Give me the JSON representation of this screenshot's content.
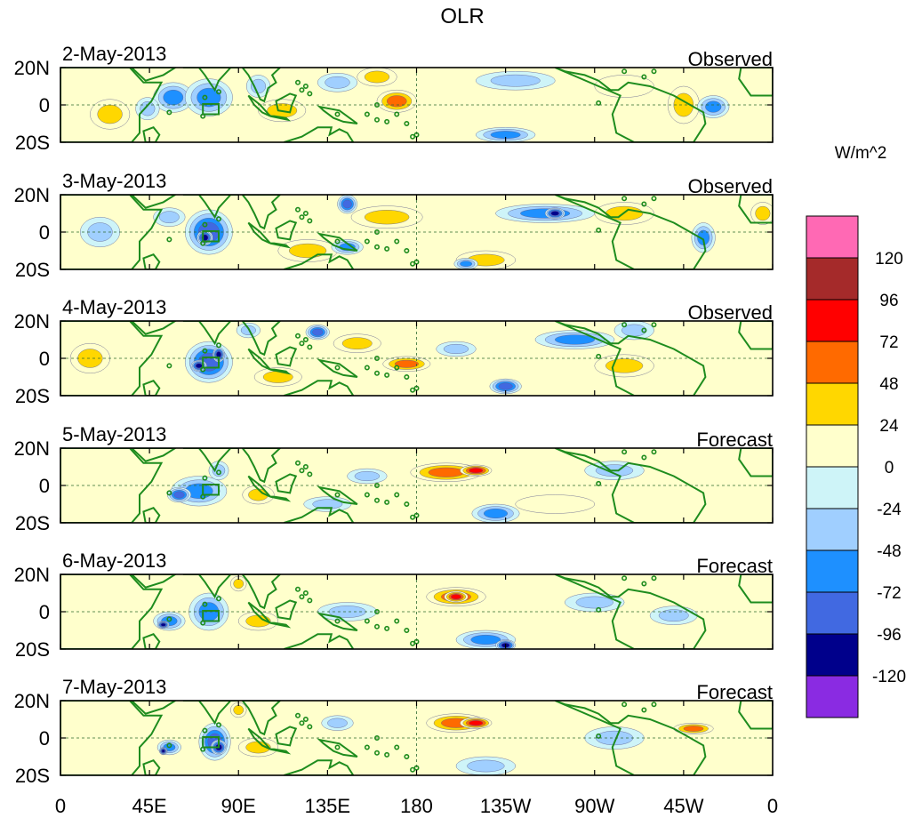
{
  "chart_data": {
    "type": "heatmap",
    "title": "OLR",
    "units_label": "W/m^2",
    "x_ticks": [
      "0",
      "45E",
      "90E",
      "135E",
      "180",
      "135W",
      "90W",
      "45W",
      "0"
    ],
    "y_ticks": [
      "20N",
      "0",
      "20S"
    ],
    "x_range_deg": [
      0,
      360
    ],
    "y_range_deg": [
      -20,
      20
    ],
    "colorbar": {
      "levels": [
        "120",
        "96",
        "72",
        "48",
        "24",
        "0",
        "-24",
        "-48",
        "-72",
        "-96",
        "-120"
      ],
      "colors": [
        "#ff69b4",
        "#a52a2a",
        "#ff0000",
        "#ff6a00",
        "#ffd700",
        "#ffffcc",
        "#cef4f8",
        "#a0cfff",
        "#1e90ff",
        "#4169e1",
        "#00008b",
        "#8a2be2"
      ]
    },
    "panels": [
      {
        "date": "2-May-2013",
        "kind": "Observed",
        "blobs": [
          {
            "lon": 57,
            "lat": 4,
            "rx": 10,
            "ry": 8,
            "v": -60
          },
          {
            "lon": 75,
            "lat": 4,
            "rx": 12,
            "ry": 10,
            "v": -55
          },
          {
            "lon": 44,
            "lat": -2,
            "rx": 6,
            "ry": 6,
            "v": -30
          },
          {
            "lon": 100,
            "lat": 10,
            "rx": 6,
            "ry": 6,
            "v": -30
          },
          {
            "lon": 170,
            "lat": 2,
            "rx": 10,
            "ry": 6,
            "v": 50
          },
          {
            "lon": 160,
            "lat": 15,
            "rx": 10,
            "ry": 5,
            "v": 30
          },
          {
            "lon": 112,
            "lat": -3,
            "rx": 12,
            "ry": 6,
            "v": 30
          },
          {
            "lon": 230,
            "lat": 13,
            "rx": 20,
            "ry": 5,
            "v": -25
          },
          {
            "lon": 225,
            "lat": -16,
            "rx": 15,
            "ry": 4,
            "v": -50
          },
          {
            "lon": 315,
            "lat": 0,
            "rx": 8,
            "ry": 10,
            "v": 25
          },
          {
            "lon": 330,
            "lat": -1,
            "rx": 8,
            "ry": 6,
            "v": -55
          },
          {
            "lon": 25,
            "lat": -5,
            "rx": 10,
            "ry": 8,
            "v": 25
          },
          {
            "lon": 285,
            "lat": 10,
            "rx": 15,
            "ry": 6,
            "v": 20
          },
          {
            "lon": 140,
            "lat": 12,
            "rx": 10,
            "ry": 5,
            "v": -30
          }
        ]
      },
      {
        "date": "3-May-2013",
        "kind": "Observed",
        "blobs": [
          {
            "lon": 75,
            "lat": 0,
            "rx": 12,
            "ry": 12,
            "v": -75
          },
          {
            "lon": 73,
            "lat": -3,
            "rx": 4,
            "ry": 4,
            "v": -105
          },
          {
            "lon": 55,
            "lat": 8,
            "rx": 8,
            "ry": 5,
            "v": -30
          },
          {
            "lon": 145,
            "lat": 15,
            "rx": 5,
            "ry": 5,
            "v": -80
          },
          {
            "lon": 165,
            "lat": 8,
            "rx": 18,
            "ry": 6,
            "v": 35
          },
          {
            "lon": 125,
            "lat": -10,
            "rx": 15,
            "ry": 6,
            "v": 30
          },
          {
            "lon": 145,
            "lat": -8,
            "rx": 8,
            "ry": 4,
            "v": -60
          },
          {
            "lon": 245,
            "lat": 10,
            "rx": 25,
            "ry": 5,
            "v": -55
          },
          {
            "lon": 250,
            "lat": 10,
            "rx": 5,
            "ry": 3,
            "v": -100
          },
          {
            "lon": 215,
            "lat": -15,
            "rx": 15,
            "ry": 5,
            "v": 30
          },
          {
            "lon": 205,
            "lat": -17,
            "rx": 6,
            "ry": 3,
            "v": -50
          },
          {
            "lon": 325,
            "lat": -3,
            "rx": 6,
            "ry": 8,
            "v": -55
          },
          {
            "lon": 285,
            "lat": 10,
            "rx": 15,
            "ry": 6,
            "v": 25
          },
          {
            "lon": 355,
            "lat": 10,
            "rx": 6,
            "ry": 6,
            "v": 40
          },
          {
            "lon": 20,
            "lat": 0,
            "rx": 10,
            "ry": 8,
            "v": -25
          }
        ]
      },
      {
        "date": "4-May-2013",
        "kind": "Observed",
        "blobs": [
          {
            "lon": 75,
            "lat": -2,
            "rx": 12,
            "ry": 11,
            "v": -80
          },
          {
            "lon": 70,
            "lat": -4,
            "rx": 4,
            "ry": 3,
            "v": -100
          },
          {
            "lon": 80,
            "lat": 2,
            "rx": 3,
            "ry": 4,
            "v": -100
          },
          {
            "lon": 130,
            "lat": 14,
            "rx": 6,
            "ry": 4,
            "v": -80
          },
          {
            "lon": 175,
            "lat": -3,
            "rx": 12,
            "ry": 4,
            "v": 60
          },
          {
            "lon": 150,
            "lat": 8,
            "rx": 12,
            "ry": 5,
            "v": 30
          },
          {
            "lon": 200,
            "lat": 5,
            "rx": 10,
            "ry": 4,
            "v": -40
          },
          {
            "lon": 260,
            "lat": 10,
            "rx": 20,
            "ry": 5,
            "v": -55
          },
          {
            "lon": 225,
            "lat": -15,
            "rx": 8,
            "ry": 4,
            "v": -90
          },
          {
            "lon": 285,
            "lat": -4,
            "rx": 15,
            "ry": 6,
            "v": 30
          },
          {
            "lon": 290,
            "lat": 15,
            "rx": 10,
            "ry": 5,
            "v": -30
          },
          {
            "lon": 15,
            "lat": 0,
            "rx": 10,
            "ry": 8,
            "v": 25
          },
          {
            "lon": 110,
            "lat": -10,
            "rx": 12,
            "ry": 5,
            "v": 30
          },
          {
            "lon": 95,
            "lat": 15,
            "rx": 6,
            "ry": 4,
            "v": -30
          }
        ]
      },
      {
        "date": "5-May-2013",
        "kind": "Forecast",
        "blobs": [
          {
            "lon": 70,
            "lat": -3,
            "rx": 14,
            "ry": 8,
            "v": -65
          },
          {
            "lon": 60,
            "lat": -5,
            "rx": 6,
            "ry": 4,
            "v": -80
          },
          {
            "lon": 80,
            "lat": 8,
            "rx": 5,
            "ry": 5,
            "v": -40
          },
          {
            "lon": 195,
            "lat": 7,
            "rx": 18,
            "ry": 5,
            "v": 55
          },
          {
            "lon": 210,
            "lat": 8,
            "rx": 8,
            "ry": 3,
            "v": 75
          },
          {
            "lon": 155,
            "lat": 5,
            "rx": 10,
            "ry": 4,
            "v": -30
          },
          {
            "lon": 220,
            "lat": -15,
            "rx": 12,
            "ry": 5,
            "v": -55
          },
          {
            "lon": 135,
            "lat": -10,
            "rx": 12,
            "ry": 4,
            "v": -30
          },
          {
            "lon": 280,
            "lat": 8,
            "rx": 15,
            "ry": 5,
            "v": -25
          },
          {
            "lon": 100,
            "lat": -5,
            "rx": 8,
            "ry": 5,
            "v": 25
          },
          {
            "lon": 250,
            "lat": -10,
            "rx": 20,
            "ry": 5,
            "v": 20
          }
        ]
      },
      {
        "date": "6-May-2013",
        "kind": "Forecast",
        "blobs": [
          {
            "lon": 75,
            "lat": 0,
            "rx": 10,
            "ry": 10,
            "v": -70
          },
          {
            "lon": 55,
            "lat": -5,
            "rx": 8,
            "ry": 5,
            "v": -60
          },
          {
            "lon": 52,
            "lat": -7,
            "rx": 3,
            "ry": 2,
            "v": -100
          },
          {
            "lon": 90,
            "lat": 15,
            "rx": 4,
            "ry": 4,
            "v": 40
          },
          {
            "lon": 200,
            "lat": 8,
            "rx": 15,
            "ry": 5,
            "v": 50
          },
          {
            "lon": 200,
            "lat": 8,
            "rx": 6,
            "ry": 3,
            "v": 75
          },
          {
            "lon": 215,
            "lat": -15,
            "rx": 15,
            "ry": 5,
            "v": -55
          },
          {
            "lon": 225,
            "lat": -18,
            "rx": 5,
            "ry": 3,
            "v": -100
          },
          {
            "lon": 145,
            "lat": 0,
            "rx": 15,
            "ry": 5,
            "v": -30
          },
          {
            "lon": 270,
            "lat": 5,
            "rx": 15,
            "ry": 5,
            "v": -25
          },
          {
            "lon": 100,
            "lat": -5,
            "rx": 10,
            "ry": 5,
            "v": 30
          },
          {
            "lon": 310,
            "lat": -2,
            "rx": 12,
            "ry": 5,
            "v": -25
          }
        ]
      },
      {
        "date": "7-May-2013",
        "kind": "Forecast",
        "blobs": [
          {
            "lon": 78,
            "lat": -2,
            "rx": 8,
            "ry": 10,
            "v": -80
          },
          {
            "lon": 80,
            "lat": -5,
            "rx": 4,
            "ry": 4,
            "v": -105
          },
          {
            "lon": 55,
            "lat": -5,
            "rx": 6,
            "ry": 4,
            "v": -65
          },
          {
            "lon": 52,
            "lat": -7,
            "rx": 2,
            "ry": 2,
            "v": -110
          },
          {
            "lon": 90,
            "lat": 15,
            "rx": 4,
            "ry": 4,
            "v": 40
          },
          {
            "lon": 200,
            "lat": 8,
            "rx": 15,
            "ry": 5,
            "v": 55
          },
          {
            "lon": 210,
            "lat": 8,
            "rx": 8,
            "ry": 3,
            "v": 72
          },
          {
            "lon": 320,
            "lat": 5,
            "rx": 10,
            "ry": 3,
            "v": 55
          },
          {
            "lon": 215,
            "lat": -15,
            "rx": 15,
            "ry": 5,
            "v": -35
          },
          {
            "lon": 280,
            "lat": 0,
            "rx": 15,
            "ry": 6,
            "v": -30
          },
          {
            "lon": 100,
            "lat": -5,
            "rx": 10,
            "ry": 5,
            "v": 30
          },
          {
            "lon": 140,
            "lat": 8,
            "rx": 8,
            "ry": 4,
            "v": -25
          }
        ]
      }
    ]
  }
}
